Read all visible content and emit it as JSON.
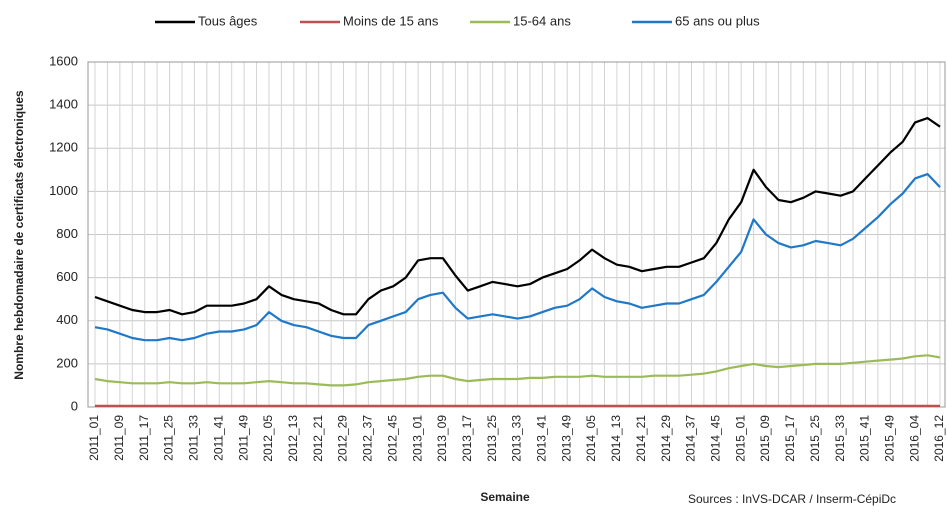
{
  "chart_data": {
    "type": "line",
    "ylabel": "Nombre hebdomadaire de certificats électroniques",
    "xlabel": "Semaine",
    "source": "Sources : InVS-DCAR / Inserm-CépiDc",
    "ylim": [
      0,
      1600
    ],
    "yticks": [
      0,
      200,
      400,
      600,
      800,
      1000,
      1200,
      1400,
      1600
    ],
    "grid": true,
    "categories": [
      "2011_01",
      null,
      "2011_09",
      null,
      "2011_17",
      null,
      "2011_25",
      null,
      "2011_33",
      null,
      "2011_41",
      null,
      "2011_49",
      null,
      "2012_05",
      null,
      "2012_13",
      null,
      "2012_21",
      null,
      "2012_29",
      null,
      "2012_37",
      null,
      "2012_45",
      null,
      "2013_01",
      null,
      "2013_09",
      null,
      "2013_17",
      null,
      "2013_25",
      null,
      "2013_33",
      null,
      "2013_41",
      null,
      "2013_49",
      null,
      "2014_05",
      null,
      "2014_13",
      null,
      "2014_21",
      null,
      "2014_29",
      null,
      "2014_37",
      null,
      "2014_45",
      null,
      "2015_01",
      null,
      "2015_09",
      null,
      "2015_17",
      null,
      "2015_25",
      null,
      "2015_33",
      null,
      "2015_41",
      null,
      "2015_49",
      null,
      "2016_04",
      null,
      "2016_12"
    ],
    "series": [
      {
        "name": "Tous âges",
        "color": "#000000",
        "values": [
          510,
          490,
          470,
          450,
          440,
          440,
          450,
          430,
          440,
          470,
          470,
          470,
          480,
          500,
          560,
          520,
          500,
          490,
          480,
          450,
          430,
          430,
          500,
          540,
          560,
          600,
          680,
          690,
          690,
          610,
          540,
          560,
          580,
          570,
          560,
          570,
          600,
          620,
          640,
          680,
          730,
          690,
          660,
          650,
          630,
          640,
          650,
          650,
          670,
          690,
          760,
          870,
          950,
          1100,
          1020,
          960,
          950,
          970,
          1000,
          990,
          980,
          1000,
          1060,
          1120,
          1180,
          1230,
          1320,
          1340,
          1300
        ]
      },
      {
        "name": "Moins de 15 ans",
        "color": "#c0504d",
        "values": [
          5,
          5,
          5,
          5,
          5,
          5,
          5,
          5,
          5,
          5,
          5,
          5,
          5,
          5,
          5,
          5,
          5,
          5,
          5,
          5,
          5,
          5,
          5,
          5,
          5,
          5,
          5,
          5,
          5,
          5,
          5,
          5,
          5,
          5,
          5,
          5,
          5,
          5,
          5,
          5,
          5,
          5,
          5,
          5,
          5,
          5,
          5,
          5,
          5,
          5,
          5,
          5,
          5,
          5,
          5,
          5,
          5,
          5,
          5,
          5,
          5,
          5,
          5,
          5,
          5,
          5,
          5,
          5,
          5
        ]
      },
      {
        "name": "15-64 ans",
        "color": "#9bbb59",
        "values": [
          130,
          120,
          115,
          110,
          110,
          110,
          115,
          110,
          110,
          115,
          110,
          110,
          110,
          115,
          120,
          115,
          110,
          110,
          105,
          100,
          100,
          105,
          115,
          120,
          125,
          130,
          140,
          145,
          145,
          130,
          120,
          125,
          130,
          130,
          130,
          135,
          135,
          140,
          140,
          140,
          145,
          140,
          140,
          140,
          140,
          145,
          145,
          145,
          150,
          155,
          165,
          180,
          190,
          200,
          190,
          185,
          190,
          195,
          200,
          200,
          200,
          205,
          210,
          215,
          220,
          225,
          235,
          240,
          230
        ]
      },
      {
        "name": "65 ans ou plus",
        "color": "#1f78c8",
        "values": [
          370,
          360,
          340,
          320,
          310,
          310,
          320,
          310,
          320,
          340,
          350,
          350,
          360,
          380,
          440,
          400,
          380,
          370,
          350,
          330,
          320,
          320,
          380,
          400,
          420,
          440,
          500,
          520,
          530,
          460,
          410,
          420,
          430,
          420,
          410,
          420,
          440,
          460,
          470,
          500,
          550,
          510,
          490,
          480,
          460,
          470,
          480,
          480,
          500,
          520,
          580,
          650,
          720,
          870,
          800,
          760,
          740,
          750,
          770,
          760,
          750,
          780,
          830,
          880,
          940,
          990,
          1060,
          1080,
          1020
        ]
      }
    ]
  }
}
